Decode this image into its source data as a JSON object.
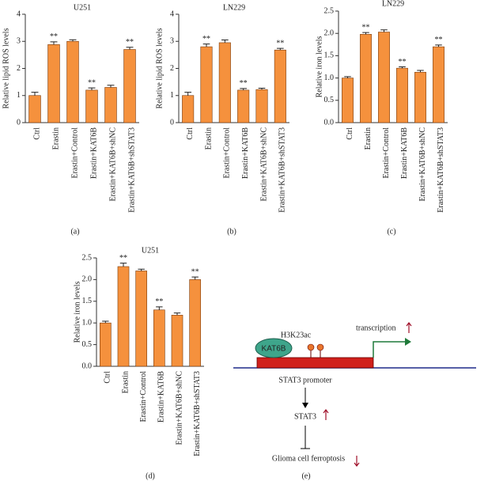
{
  "chart_data": [
    {
      "type": "bar",
      "title": "U251",
      "y_label": "Relative lipid ROS levels",
      "panel_label": "(a)",
      "color": "#f5913d",
      "categories": [
        "Ctrl",
        "Erastin",
        "Erastin+Control",
        "Erastin+KAT6B",
        "Erastin+KAT6B+shNC",
        "Erastin+KAT6B+shSTAT3"
      ],
      "values": [
        1.0,
        2.88,
        3.0,
        1.2,
        1.3,
        2.7
      ],
      "errors": [
        0.12,
        0.1,
        0.06,
        0.08,
        0.08,
        0.08
      ],
      "annotations": [
        null,
        "**",
        null,
        "**",
        null,
        "**"
      ],
      "ylim": [
        0,
        4
      ],
      "yticks": [
        0,
        1,
        2,
        3,
        4
      ]
    },
    {
      "type": "bar",
      "title": "LN229",
      "y_label": "Relative lipid ROS levels",
      "panel_label": "(b)",
      "color": "#f5913d",
      "categories": [
        "Ctrl",
        "Erastin",
        "Erastin+Control",
        "Erastin+KAT6B",
        "Erastin+KAT6B+shNC",
        "Erastin+KAT6B+shSTAT3"
      ],
      "values": [
        1.0,
        2.8,
        2.95,
        1.2,
        1.22,
        2.68
      ],
      "errors": [
        0.12,
        0.1,
        0.1,
        0.06,
        0.05,
        0.06
      ],
      "annotations": [
        null,
        "**",
        null,
        "**",
        null,
        "**"
      ],
      "ylim": [
        0,
        4
      ],
      "yticks": [
        0,
        1,
        2,
        3,
        4
      ]
    },
    {
      "type": "bar",
      "title": "LN229",
      "y_label": "Relative iron levels",
      "panel_label": "(c)",
      "color": "#f5913d",
      "categories": [
        "Ctrl",
        "Erastin",
        "Erastin+Control",
        "Erastin+KAT6B",
        "Erastin+KAT6B+shNC",
        "Erastin+KAT6B+shSTAT3"
      ],
      "values": [
        1.0,
        1.98,
        2.03,
        1.22,
        1.13,
        1.7
      ],
      "errors": [
        0.03,
        0.04,
        0.05,
        0.03,
        0.04,
        0.04
      ],
      "annotations": [
        null,
        "**",
        null,
        "**",
        null,
        "**"
      ],
      "ylim": [
        0,
        2.5
      ],
      "yticks": [
        {
          "value": 0,
          "label": "0.0"
        },
        0.5,
        {
          "value": 1,
          "label": "1.0"
        },
        1.5,
        {
          "value": 2,
          "label": "2.0"
        },
        2.5
      ]
    },
    {
      "type": "bar",
      "title": "U251",
      "y_label": "Relative iron levels",
      "panel_label": "(d)",
      "color": "#f5913d",
      "categories": [
        "Ctrl",
        "Erastin",
        "Erastin+Control",
        "Erastin+KAT6B",
        "Erastin+KAT6B+shNC",
        "Erastin+KAT6B+shSTAT3"
      ],
      "values": [
        1.0,
        2.3,
        2.2,
        1.3,
        1.18,
        2.0
      ],
      "errors": [
        0.04,
        0.08,
        0.04,
        0.07,
        0.05,
        0.06
      ],
      "annotations": [
        null,
        "**",
        null,
        "**",
        null,
        "**"
      ],
      "ylim": [
        0,
        2.5
      ],
      "yticks": [
        {
          "value": 0,
          "label": "0.0"
        },
        0.5,
        {
          "value": 1,
          "label": "1.0"
        },
        1.5,
        {
          "value": 2,
          "label": "2.0"
        },
        2.5
      ]
    }
  ],
  "diagram": {
    "enzyme": "KAT6B",
    "mark": "H3K23ac",
    "transcription": "transcription",
    "promoter": "STAT3 promoter",
    "gene": "STAT3",
    "outcome": "Glioma cell ferroptosis",
    "panel_label": "(e)"
  }
}
